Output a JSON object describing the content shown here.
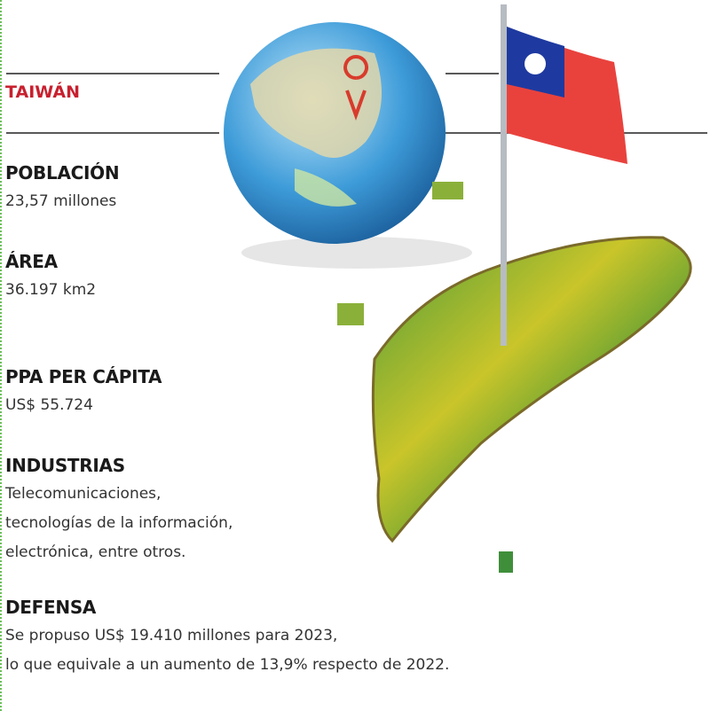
{
  "header": {
    "title": "TAIWÁN"
  },
  "sections": [
    {
      "heading": "POBLACIÓN",
      "lines": [
        "23,57 millones"
      ]
    },
    {
      "heading": "ÁREA",
      "lines": [
        "36.197 km2"
      ]
    },
    {
      "heading": "PPA PER CÁPITA",
      "lines": [
        "US$ 55.724"
      ]
    },
    {
      "heading": "INDUSTRIAS",
      "lines": [
        "Telecomunicaciones,",
        "tecnologías de la información,",
        "electrónica, entre otros."
      ]
    },
    {
      "heading": "DEFENSA",
      "lines": [
        "Se propuso US$ 19.410 millones para 2023,",
        "lo que equivale a un aumento de 13,9% respecto de 2022."
      ]
    }
  ]
}
